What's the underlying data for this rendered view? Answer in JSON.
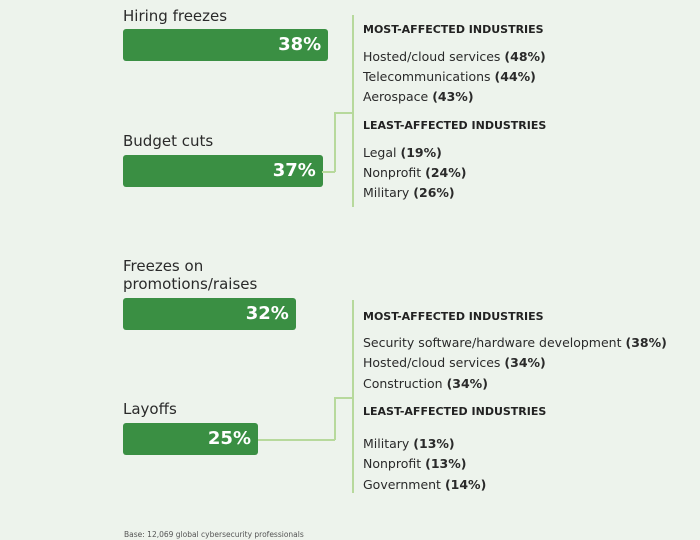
{
  "chart_data": {
    "type": "bar",
    "orientation": "horizontal",
    "categories": [
      "Hiring freezes",
      "Budget cuts",
      "Freezes on promotions/raises",
      "Layoffs"
    ],
    "values": [
      38,
      37,
      32,
      25
    ],
    "value_labels": [
      "38%",
      "37%",
      "32%",
      "25%"
    ],
    "bar_color": "#3a8f43",
    "groups": [
      {
        "most_heading": "MOST-AFFECTED INDUSTRIES",
        "most": [
          {
            "name": "Hosted/cloud services",
            "value": "(48%)"
          },
          {
            "name": "Telecommunications",
            "value": "(44%)"
          },
          {
            "name": "Aerospace",
            "value": "(43%)"
          }
        ],
        "least_heading": "LEAST-AFFECTED INDUSTRIES",
        "least": [
          {
            "name": "Legal",
            "value": "(19%)"
          },
          {
            "name": "Nonprofit",
            "value": "(24%)"
          },
          {
            "name": "Military",
            "value": "(26%)"
          }
        ]
      },
      {
        "most_heading": "MOST-AFFECTED INDUSTRIES",
        "most": [
          {
            "name": "Security software/hardware development",
            "value": "(38%)"
          },
          {
            "name": "Hosted/cloud services",
            "value": "(34%)"
          },
          {
            "name": "Construction",
            "value": "(34%)"
          }
        ],
        "least_heading": "LEAST-AFFECTED INDUSTRIES",
        "least": [
          {
            "name": "Military",
            "value": "(13%)"
          },
          {
            "name": "Nonprofit",
            "value": "(13%)"
          },
          {
            "name": "Government",
            "value": "(14%)"
          }
        ]
      }
    ],
    "footnote": "Base: 12,069 global cybersecurity professionals"
  }
}
